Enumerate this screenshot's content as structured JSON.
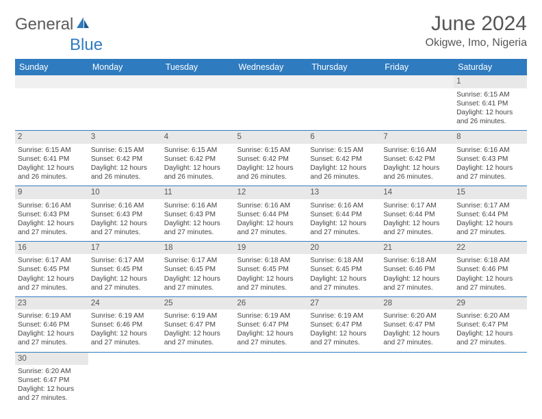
{
  "brand": {
    "part1": "General",
    "part2": "Blue",
    "text_color": "#5a5a5a",
    "accent_color": "#2f7bbf"
  },
  "header": {
    "title": "June 2024",
    "location": "Okigwe, Imo, Nigeria"
  },
  "colors": {
    "header_bg": "#2f7bbf",
    "header_text": "#ffffff",
    "daynum_bg": "#e8e8e8",
    "empty_bg": "#f0f0f0",
    "body_text": "#444444",
    "row_divider": "#2f7bbf"
  },
  "typography": {
    "title_fontsize": 30,
    "location_fontsize": 16,
    "dayheader_fontsize": 12.5,
    "daynum_fontsize": 11.5,
    "body_fontsize": 10.2
  },
  "dayHeaders": [
    "Sunday",
    "Monday",
    "Tuesday",
    "Wednesday",
    "Thursday",
    "Friday",
    "Saturday"
  ],
  "weeks": [
    [
      null,
      null,
      null,
      null,
      null,
      null,
      {
        "n": "1",
        "sr": "6:15 AM",
        "ss": "6:41 PM",
        "dl": "12 hours and 26 minutes."
      }
    ],
    [
      {
        "n": "2",
        "sr": "6:15 AM",
        "ss": "6:41 PM",
        "dl": "12 hours and 26 minutes."
      },
      {
        "n": "3",
        "sr": "6:15 AM",
        "ss": "6:42 PM",
        "dl": "12 hours and 26 minutes."
      },
      {
        "n": "4",
        "sr": "6:15 AM",
        "ss": "6:42 PM",
        "dl": "12 hours and 26 minutes."
      },
      {
        "n": "5",
        "sr": "6:15 AM",
        "ss": "6:42 PM",
        "dl": "12 hours and 26 minutes."
      },
      {
        "n": "6",
        "sr": "6:15 AM",
        "ss": "6:42 PM",
        "dl": "12 hours and 26 minutes."
      },
      {
        "n": "7",
        "sr": "6:16 AM",
        "ss": "6:42 PM",
        "dl": "12 hours and 26 minutes."
      },
      {
        "n": "8",
        "sr": "6:16 AM",
        "ss": "6:43 PM",
        "dl": "12 hours and 27 minutes."
      }
    ],
    [
      {
        "n": "9",
        "sr": "6:16 AM",
        "ss": "6:43 PM",
        "dl": "12 hours and 27 minutes."
      },
      {
        "n": "10",
        "sr": "6:16 AM",
        "ss": "6:43 PM",
        "dl": "12 hours and 27 minutes."
      },
      {
        "n": "11",
        "sr": "6:16 AM",
        "ss": "6:43 PM",
        "dl": "12 hours and 27 minutes."
      },
      {
        "n": "12",
        "sr": "6:16 AM",
        "ss": "6:44 PM",
        "dl": "12 hours and 27 minutes."
      },
      {
        "n": "13",
        "sr": "6:16 AM",
        "ss": "6:44 PM",
        "dl": "12 hours and 27 minutes."
      },
      {
        "n": "14",
        "sr": "6:17 AM",
        "ss": "6:44 PM",
        "dl": "12 hours and 27 minutes."
      },
      {
        "n": "15",
        "sr": "6:17 AM",
        "ss": "6:44 PM",
        "dl": "12 hours and 27 minutes."
      }
    ],
    [
      {
        "n": "16",
        "sr": "6:17 AM",
        "ss": "6:45 PM",
        "dl": "12 hours and 27 minutes."
      },
      {
        "n": "17",
        "sr": "6:17 AM",
        "ss": "6:45 PM",
        "dl": "12 hours and 27 minutes."
      },
      {
        "n": "18",
        "sr": "6:17 AM",
        "ss": "6:45 PM",
        "dl": "12 hours and 27 minutes."
      },
      {
        "n": "19",
        "sr": "6:18 AM",
        "ss": "6:45 PM",
        "dl": "12 hours and 27 minutes."
      },
      {
        "n": "20",
        "sr": "6:18 AM",
        "ss": "6:45 PM",
        "dl": "12 hours and 27 minutes."
      },
      {
        "n": "21",
        "sr": "6:18 AM",
        "ss": "6:46 PM",
        "dl": "12 hours and 27 minutes."
      },
      {
        "n": "22",
        "sr": "6:18 AM",
        "ss": "6:46 PM",
        "dl": "12 hours and 27 minutes."
      }
    ],
    [
      {
        "n": "23",
        "sr": "6:19 AM",
        "ss": "6:46 PM",
        "dl": "12 hours and 27 minutes."
      },
      {
        "n": "24",
        "sr": "6:19 AM",
        "ss": "6:46 PM",
        "dl": "12 hours and 27 minutes."
      },
      {
        "n": "25",
        "sr": "6:19 AM",
        "ss": "6:47 PM",
        "dl": "12 hours and 27 minutes."
      },
      {
        "n": "26",
        "sr": "6:19 AM",
        "ss": "6:47 PM",
        "dl": "12 hours and 27 minutes."
      },
      {
        "n": "27",
        "sr": "6:19 AM",
        "ss": "6:47 PM",
        "dl": "12 hours and 27 minutes."
      },
      {
        "n": "28",
        "sr": "6:20 AM",
        "ss": "6:47 PM",
        "dl": "12 hours and 27 minutes."
      },
      {
        "n": "29",
        "sr": "6:20 AM",
        "ss": "6:47 PM",
        "dl": "12 hours and 27 minutes."
      }
    ],
    [
      {
        "n": "30",
        "sr": "6:20 AM",
        "ss": "6:47 PM",
        "dl": "12 hours and 27 minutes."
      },
      null,
      null,
      null,
      null,
      null,
      null
    ]
  ],
  "labels": {
    "sunrise_prefix": "Sunrise: ",
    "sunset_prefix": "Sunset: ",
    "daylight_prefix": "Daylight: "
  }
}
